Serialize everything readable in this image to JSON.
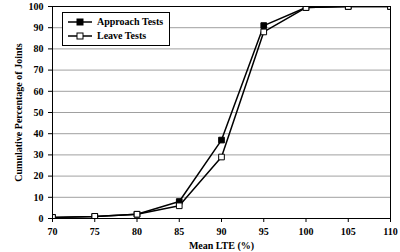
{
  "chart_data": {
    "type": "line",
    "x_label": "Mean LTE (%)",
    "y_label": "Cumulative Percentage of Joints",
    "xlim": [
      70,
      110
    ],
    "xticks": [
      70,
      75,
      80,
      85,
      90,
      95,
      100,
      105,
      110
    ],
    "ylim": [
      0,
      100
    ],
    "yticks": [
      0,
      10,
      20,
      30,
      40,
      50,
      60,
      70,
      80,
      90,
      100
    ],
    "grid": "y",
    "legend": "top-left",
    "x": [
      70,
      75,
      80,
      85,
      90,
      95,
      100,
      105,
      110
    ],
    "series": [
      {
        "name": "Approach Tests",
        "color": "#000000",
        "marker": "square",
        "line_style": "solid",
        "values": [
          0.5,
          1,
          2,
          8,
          37,
          91,
          99.5,
          100,
          100
        ]
      },
      {
        "name": "Leave Tests",
        "color": "#000000",
        "marker": "square-open",
        "line_style": "solid",
        "values": [
          0.5,
          1,
          2,
          6,
          29,
          88,
          99.5,
          100,
          100
        ]
      }
    ]
  }
}
